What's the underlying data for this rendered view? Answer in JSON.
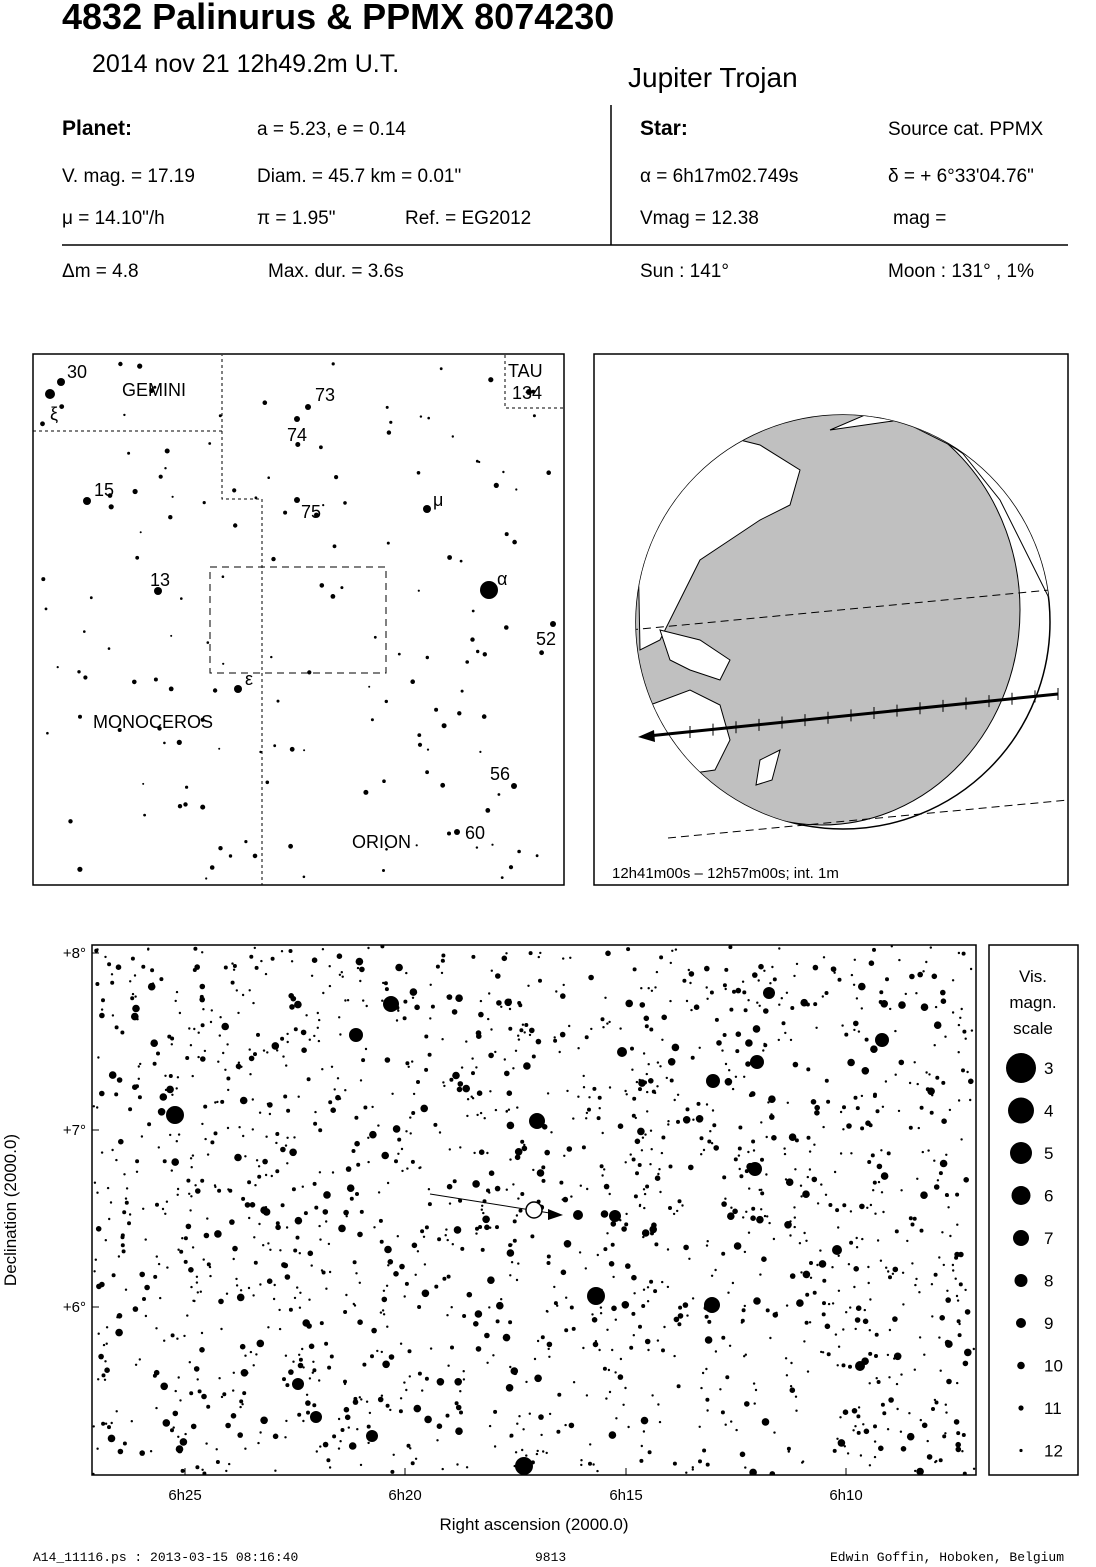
{
  "header": {
    "title": "4832 Palinurus  &  PPMX 8074230",
    "date": "2014 nov 21  12h49.2m U.T.",
    "object_type": "Jupiter Trojan"
  },
  "planet": {
    "heading": "Planet:",
    "orbit": "a = 5.23, e = 0.14",
    "vmag": "V. mag. = 17.19",
    "diam": "Diam. = 45.7 km = 0.01\"",
    "mu": "μ =  14.10\"/h",
    "pi": "π =  1.95\"",
    "ref": "Ref. = EG2012"
  },
  "star": {
    "heading": "Star:",
    "source": "Source cat.  PPMX",
    "alpha": "α =  6h17m02.749s",
    "delta": "δ = + 6°33'04.76\"",
    "vmag": "Vmag = 12.38",
    "mag": "mag ="
  },
  "event": {
    "dm": "Δm = 4.8",
    "maxdur": "Max. dur. = 3.6s",
    "sun": "Sun : 141°",
    "moon": "Moon : 131° ,  1%"
  },
  "finder": {
    "constellations": [
      "GEMINI",
      "MONOCEROS",
      "ORION",
      "TAU"
    ],
    "star_labels": [
      "30",
      "ξ",
      "73",
      "74",
      "75",
      "134",
      "15",
      "13",
      "μ",
      "α",
      "52",
      "ε",
      "56",
      "60"
    ]
  },
  "globe": {
    "caption": "12h41m00s – 12h57m00s; int.  1m"
  },
  "chart_data": {
    "type": "scatter",
    "xlabel": "Right ascension (2000.0)",
    "ylabel": "Declination (2000.0)",
    "xticks": [
      "6h25",
      "6h20",
      "6h15",
      "6h10"
    ],
    "yticks": [
      "+8°",
      "+7°",
      "+6°"
    ],
    "legend": {
      "title": [
        "Vis.",
        "magn.",
        "scale"
      ],
      "mags": [
        "3",
        "4",
        "5",
        "6",
        "7",
        "8",
        "9",
        "10",
        "11",
        "12"
      ]
    }
  },
  "footer": {
    "file": "A14_11116.ps : 2013-03-15 08:16:40",
    "number": "9813",
    "author": "Edwin Goffin, Hoboken, Belgium"
  }
}
